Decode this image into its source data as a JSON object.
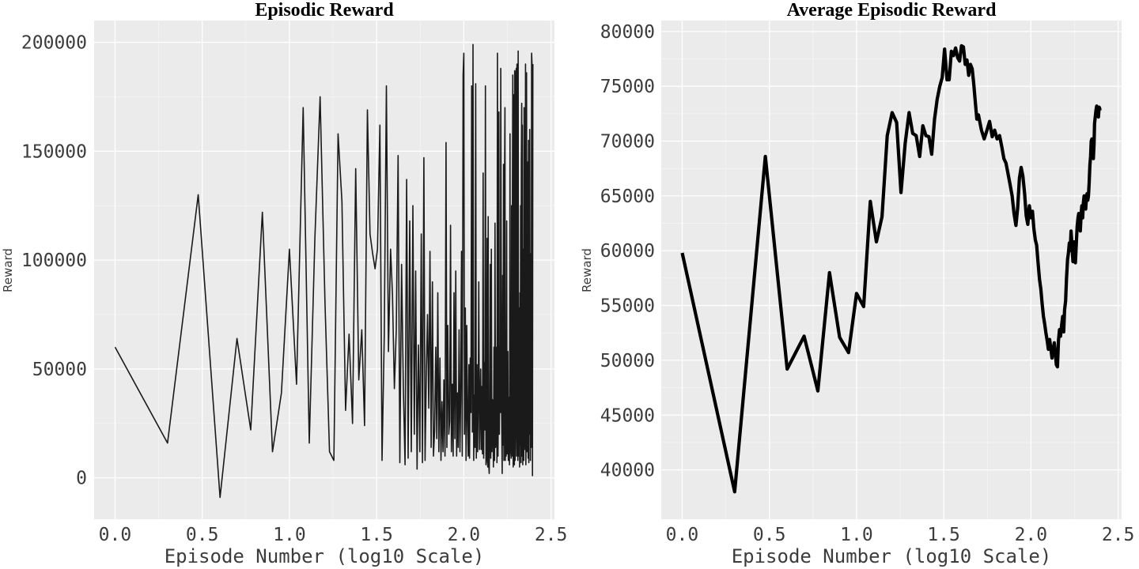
{
  "chart_data": [
    {
      "type": "line",
      "title": "Episodic Reward",
      "xlabel": "Episode Number (log10 Scale)",
      "ylabel": "Reward",
      "xlim": [
        -0.12,
        2.52
      ],
      "ylim": [
        -19000,
        210000
      ],
      "xticks": [
        0.0,
        0.5,
        1.0,
        1.5,
        2.0,
        2.5
      ],
      "xtick_labels": [
        "0.0",
        "0.5",
        "1.0",
        "1.5",
        "2.0",
        "2.5"
      ],
      "yticks": [
        0,
        50000,
        100000,
        150000,
        200000
      ],
      "ytick_labels": [
        "0",
        "50000",
        "100000",
        "150000",
        "200000"
      ],
      "grid": true,
      "line_color": "#1a1a1a",
      "series": [
        {
          "x": [
            0.0,
            0.301,
            0.477,
            0.602,
            0.699,
            0.778,
            0.845,
            0.903,
            0.954,
            1.0,
            1.041,
            1.079,
            1.114,
            1.146,
            1.176,
            1.204,
            1.23,
            1.255,
            1.279,
            1.301,
            1.322,
            1.342,
            1.362,
            1.38,
            1.398,
            1.415,
            1.431,
            1.447,
            1.462,
            1.477,
            1.491,
            1.505,
            1.519,
            1.531,
            1.544,
            1.556,
            1.568,
            1.58,
            1.591,
            1.602,
            1.613,
            1.623,
            1.633,
            1.643,
            1.653,
            1.663,
            1.672,
            1.681,
            1.69,
            1.699,
            1.708,
            1.716,
            1.724,
            1.732,
            1.74,
            1.748,
            1.756,
            1.763,
            1.771,
            1.778,
            1.785,
            1.792,
            1.799,
            1.806,
            1.813,
            1.82,
            1.826,
            1.833,
            1.839,
            1.845,
            1.851,
            1.857,
            1.863,
            1.869,
            1.875,
            1.881,
            1.886,
            1.892,
            1.898,
            1.903,
            1.908,
            1.914,
            1.919,
            1.924,
            1.929,
            1.934,
            1.939,
            1.944,
            1.949,
            1.954,
            1.959,
            1.964,
            1.968,
            1.973,
            1.978,
            1.982,
            1.987,
            1.991,
            1.996,
            2.0,
            2.004,
            2.009,
            2.013,
            2.017,
            2.021,
            2.025,
            2.029,
            2.033,
            2.037,
            2.041,
            2.045,
            2.049,
            2.053,
            2.057,
            2.061,
            2.064,
            2.068,
            2.072,
            2.076,
            2.079,
            2.083,
            2.086,
            2.09,
            2.093,
            2.097,
            2.1,
            2.104,
            2.107,
            2.111,
            2.114,
            2.117,
            2.121,
            2.124,
            2.127,
            2.13,
            2.134,
            2.137,
            2.14,
            2.143,
            2.146,
            2.149,
            2.152,
            2.155,
            2.158,
            2.161,
            2.164,
            2.167,
            2.17,
            2.173,
            2.176,
            2.179,
            2.182,
            2.185,
            2.188,
            2.19,
            2.193,
            2.196,
            2.199,
            2.201,
            2.204,
            2.207,
            2.21,
            2.212,
            2.215,
            2.217,
            2.22,
            2.223,
            2.225,
            2.228,
            2.23,
            2.233,
            2.236,
            2.238,
            2.241,
            2.243,
            2.246,
            2.248,
            2.25,
            2.253,
            2.255,
            2.258,
            2.26,
            2.262,
            2.265,
            2.267,
            2.27,
            2.272,
            2.274,
            2.276,
            2.279,
            2.281,
            2.283,
            2.286,
            2.288,
            2.29,
            2.292,
            2.294,
            2.297,
            2.299,
            2.301,
            2.303,
            2.305,
            2.307,
            2.31,
            2.312,
            2.314,
            2.316,
            2.318,
            2.32,
            2.322,
            2.324,
            2.326,
            2.328,
            2.33,
            2.332,
            2.334,
            2.336,
            2.338,
            2.34,
            2.342,
            2.344,
            2.346,
            2.348,
            2.35,
            2.352,
            2.354,
            2.356,
            2.358,
            2.36,
            2.362,
            2.364,
            2.365,
            2.367,
            2.369,
            2.371,
            2.373,
            2.375,
            2.377,
            2.378,
            2.38,
            2.382,
            2.384,
            2.386,
            2.387,
            2.389,
            2.391,
            2.393,
            2.394,
            2.396
          ],
          "y": [
            60000,
            16000,
            130000,
            -9000,
            64000,
            22000,
            122000,
            12000,
            39000,
            105000,
            43000,
            170000,
            16000,
            110000,
            175000,
            80000,
            12000,
            8000,
            158000,
            127000,
            31000,
            66000,
            25000,
            142000,
            45000,
            68000,
            24000,
            169000,
            112000,
            103000,
            96000,
            105000,
            162000,
            8000,
            65000,
            180000,
            58000,
            105000,
            84000,
            41000,
            68000,
            148000,
            7000,
            98000,
            42000,
            6000,
            137000,
            9000,
            118000,
            12000,
            125000,
            20000,
            95000,
            4000,
            61000,
            12000,
            112000,
            7000,
            147000,
            8000,
            48000,
            75000,
            32000,
            104000,
            14000,
            90000,
            10000,
            22000,
            60000,
            18000,
            85000,
            12000,
            55000,
            8000,
            35000,
            12000,
            45000,
            10000,
            154000,
            14000,
            70000,
            20000,
            26000,
            116000,
            12000,
            43000,
            10000,
            85000,
            18000,
            95000,
            10000,
            39000,
            14000,
            68000,
            12000,
            36000,
            104000,
            10000,
            185000,
            195000,
            20000,
            78000,
            8000,
            70000,
            28000,
            10000,
            52000,
            9000,
            55000,
            30000,
            180000,
            21000,
            199000,
            8000,
            38000,
            14000,
            181000,
            9000,
            52000,
            12000,
            40000,
            90000,
            13000,
            30000,
            50000,
            13000,
            42000,
            11000,
            140000,
            9000,
            53000,
            22000,
            180000,
            6000,
            8000,
            110000,
            5000,
            120000,
            6000,
            2000,
            20000,
            98000,
            9000,
            105000,
            12000,
            36000,
            30000,
            5000,
            60000,
            8000,
            117000,
            14000,
            20000,
            60000,
            7000,
            195000,
            10000,
            40000,
            168000,
            20000,
            60000,
            30000,
            188000,
            74000,
            30000,
            2000,
            93000,
            15000,
            144000,
            8000,
            126000,
            170000,
            8000,
            55000,
            10000,
            118000,
            11000,
            46000,
            58000,
            8000,
            37000,
            30000,
            6000,
            158000,
            12000,
            11000,
            9000,
            125000,
            10000,
            135000,
            185000,
            5000,
            120000,
            176000,
            6000,
            187000,
            8000,
            25000,
            186000,
            188000,
            10000,
            190000,
            150000,
            8000,
            196000,
            11000,
            10000,
            78000,
            5000,
            85000,
            15000,
            125000,
            7000,
            145000,
            172000,
            10000,
            162000,
            6000,
            105000,
            30000,
            8000,
            170000,
            13000,
            20000,
            83000,
            190000,
            6000,
            25000,
            186000,
            12000,
            45000,
            16000,
            145000,
            9000,
            155000,
            7000,
            124000,
            20000,
            160000,
            75000,
            8000,
            88000,
            103000,
            14000,
            195000,
            190000,
            40000,
            1000,
            190000
          ]
        }
      ]
    },
    {
      "type": "line",
      "title": "Average Episodic Reward",
      "xlabel": "Episode Number (log10 Scale)",
      "ylabel": "Reward",
      "xlim": [
        -0.12,
        2.52
      ],
      "ylim": [
        35500,
        81000
      ],
      "xticks": [
        0.0,
        0.5,
        1.0,
        1.5,
        2.0,
        2.5
      ],
      "xtick_labels": [
        "0.0",
        "0.5",
        "1.0",
        "1.5",
        "2.0",
        "2.5"
      ],
      "yticks": [
        40000,
        45000,
        50000,
        55000,
        60000,
        65000,
        70000,
        75000,
        80000
      ],
      "ytick_labels": [
        "40000",
        "45000",
        "50000",
        "55000",
        "60000",
        "65000",
        "70000",
        "75000",
        "80000"
      ],
      "grid": true,
      "line_color": "#000000",
      "series": [
        {
          "x": [
            0.0,
            0.301,
            0.477,
            0.602,
            0.699,
            0.778,
            0.845,
            0.903,
            0.954,
            1.0,
            1.041,
            1.079,
            1.114,
            1.146,
            1.176,
            1.204,
            1.23,
            1.255,
            1.279,
            1.301,
            1.322,
            1.342,
            1.362,
            1.38,
            1.398,
            1.415,
            1.431,
            1.447,
            1.462,
            1.477,
            1.491,
            1.505,
            1.519,
            1.531,
            1.544,
            1.556,
            1.568,
            1.58,
            1.591,
            1.602,
            1.613,
            1.623,
            1.633,
            1.643,
            1.653,
            1.663,
            1.672,
            1.681,
            1.69,
            1.699,
            1.716,
            1.732,
            1.748,
            1.763,
            1.778,
            1.792,
            1.806,
            1.82,
            1.833,
            1.845,
            1.857,
            1.869,
            1.881,
            1.892,
            1.903,
            1.914,
            1.924,
            1.934,
            1.944,
            1.954,
            1.964,
            1.973,
            1.982,
            1.991,
            2.0,
            2.009,
            2.017,
            2.025,
            2.033,
            2.041,
            2.049,
            2.057,
            2.064,
            2.072,
            2.079,
            2.086,
            2.093,
            2.1,
            2.107,
            2.114,
            2.121,
            2.127,
            2.134,
            2.14,
            2.146,
            2.152,
            2.158,
            2.164,
            2.17,
            2.176,
            2.182,
            2.188,
            2.193,
            2.199,
            2.204,
            2.21,
            2.215,
            2.22,
            2.225,
            2.23,
            2.236,
            2.241,
            2.246,
            2.25,
            2.255,
            2.26,
            2.265,
            2.27,
            2.274,
            2.279,
            2.283,
            2.288,
            2.292,
            2.297,
            2.301,
            2.305,
            2.31,
            2.314,
            2.318,
            2.322,
            2.326,
            2.33,
            2.334,
            2.338,
            2.342,
            2.346,
            2.35,
            2.354,
            2.358,
            2.362,
            2.365,
            2.369,
            2.373,
            2.377,
            2.38,
            2.384,
            2.387,
            2.391,
            2.394,
            2.396
          ],
          "y": [
            59800,
            38000,
            68600,
            49200,
            52200,
            47200,
            58000,
            52100,
            50700,
            56100,
            54900,
            64500,
            60800,
            63100,
            70500,
            72600,
            71700,
            65300,
            69800,
            72600,
            70700,
            70500,
            68600,
            71400,
            70500,
            70400,
            68800,
            72000,
            73800,
            75000,
            75800,
            78400,
            75600,
            75600,
            78200,
            77800,
            78500,
            77600,
            77300,
            78700,
            78600,
            77000,
            77400,
            76000,
            77000,
            76600,
            75200,
            73600,
            72000,
            72400,
            71000,
            70200,
            71000,
            71800,
            70400,
            71000,
            70200,
            70500,
            69500,
            68400,
            68000,
            67000,
            66000,
            65000,
            63400,
            62300,
            63900,
            66600,
            67600,
            66800,
            65200,
            63200,
            62400,
            64100,
            63000,
            63600,
            62000,
            61000,
            60500,
            58900,
            57400,
            56500,
            55200,
            54000,
            53300,
            52500,
            51800,
            51000,
            51900,
            51100,
            50200,
            50900,
            51600,
            50600,
            49600,
            49400,
            51800,
            52800,
            52200,
            53200,
            54000,
            52600,
            54600,
            55400,
            57400,
            59200,
            59800,
            60700,
            60000,
            61800,
            60400,
            59000,
            60800,
            59600,
            58900,
            60600,
            62200,
            63000,
            63400,
            62200,
            61800,
            63400,
            64100,
            63000,
            64400,
            65000,
            64200,
            63800,
            64800,
            65200,
            64600,
            65000,
            66200,
            67800,
            68600,
            70000,
            70200,
            69500,
            68400,
            69800,
            71600,
            72200,
            72800,
            73200,
            72400,
            72900,
            72200,
            73100,
            73000,
            72800
          ]
        }
      ]
    }
  ]
}
